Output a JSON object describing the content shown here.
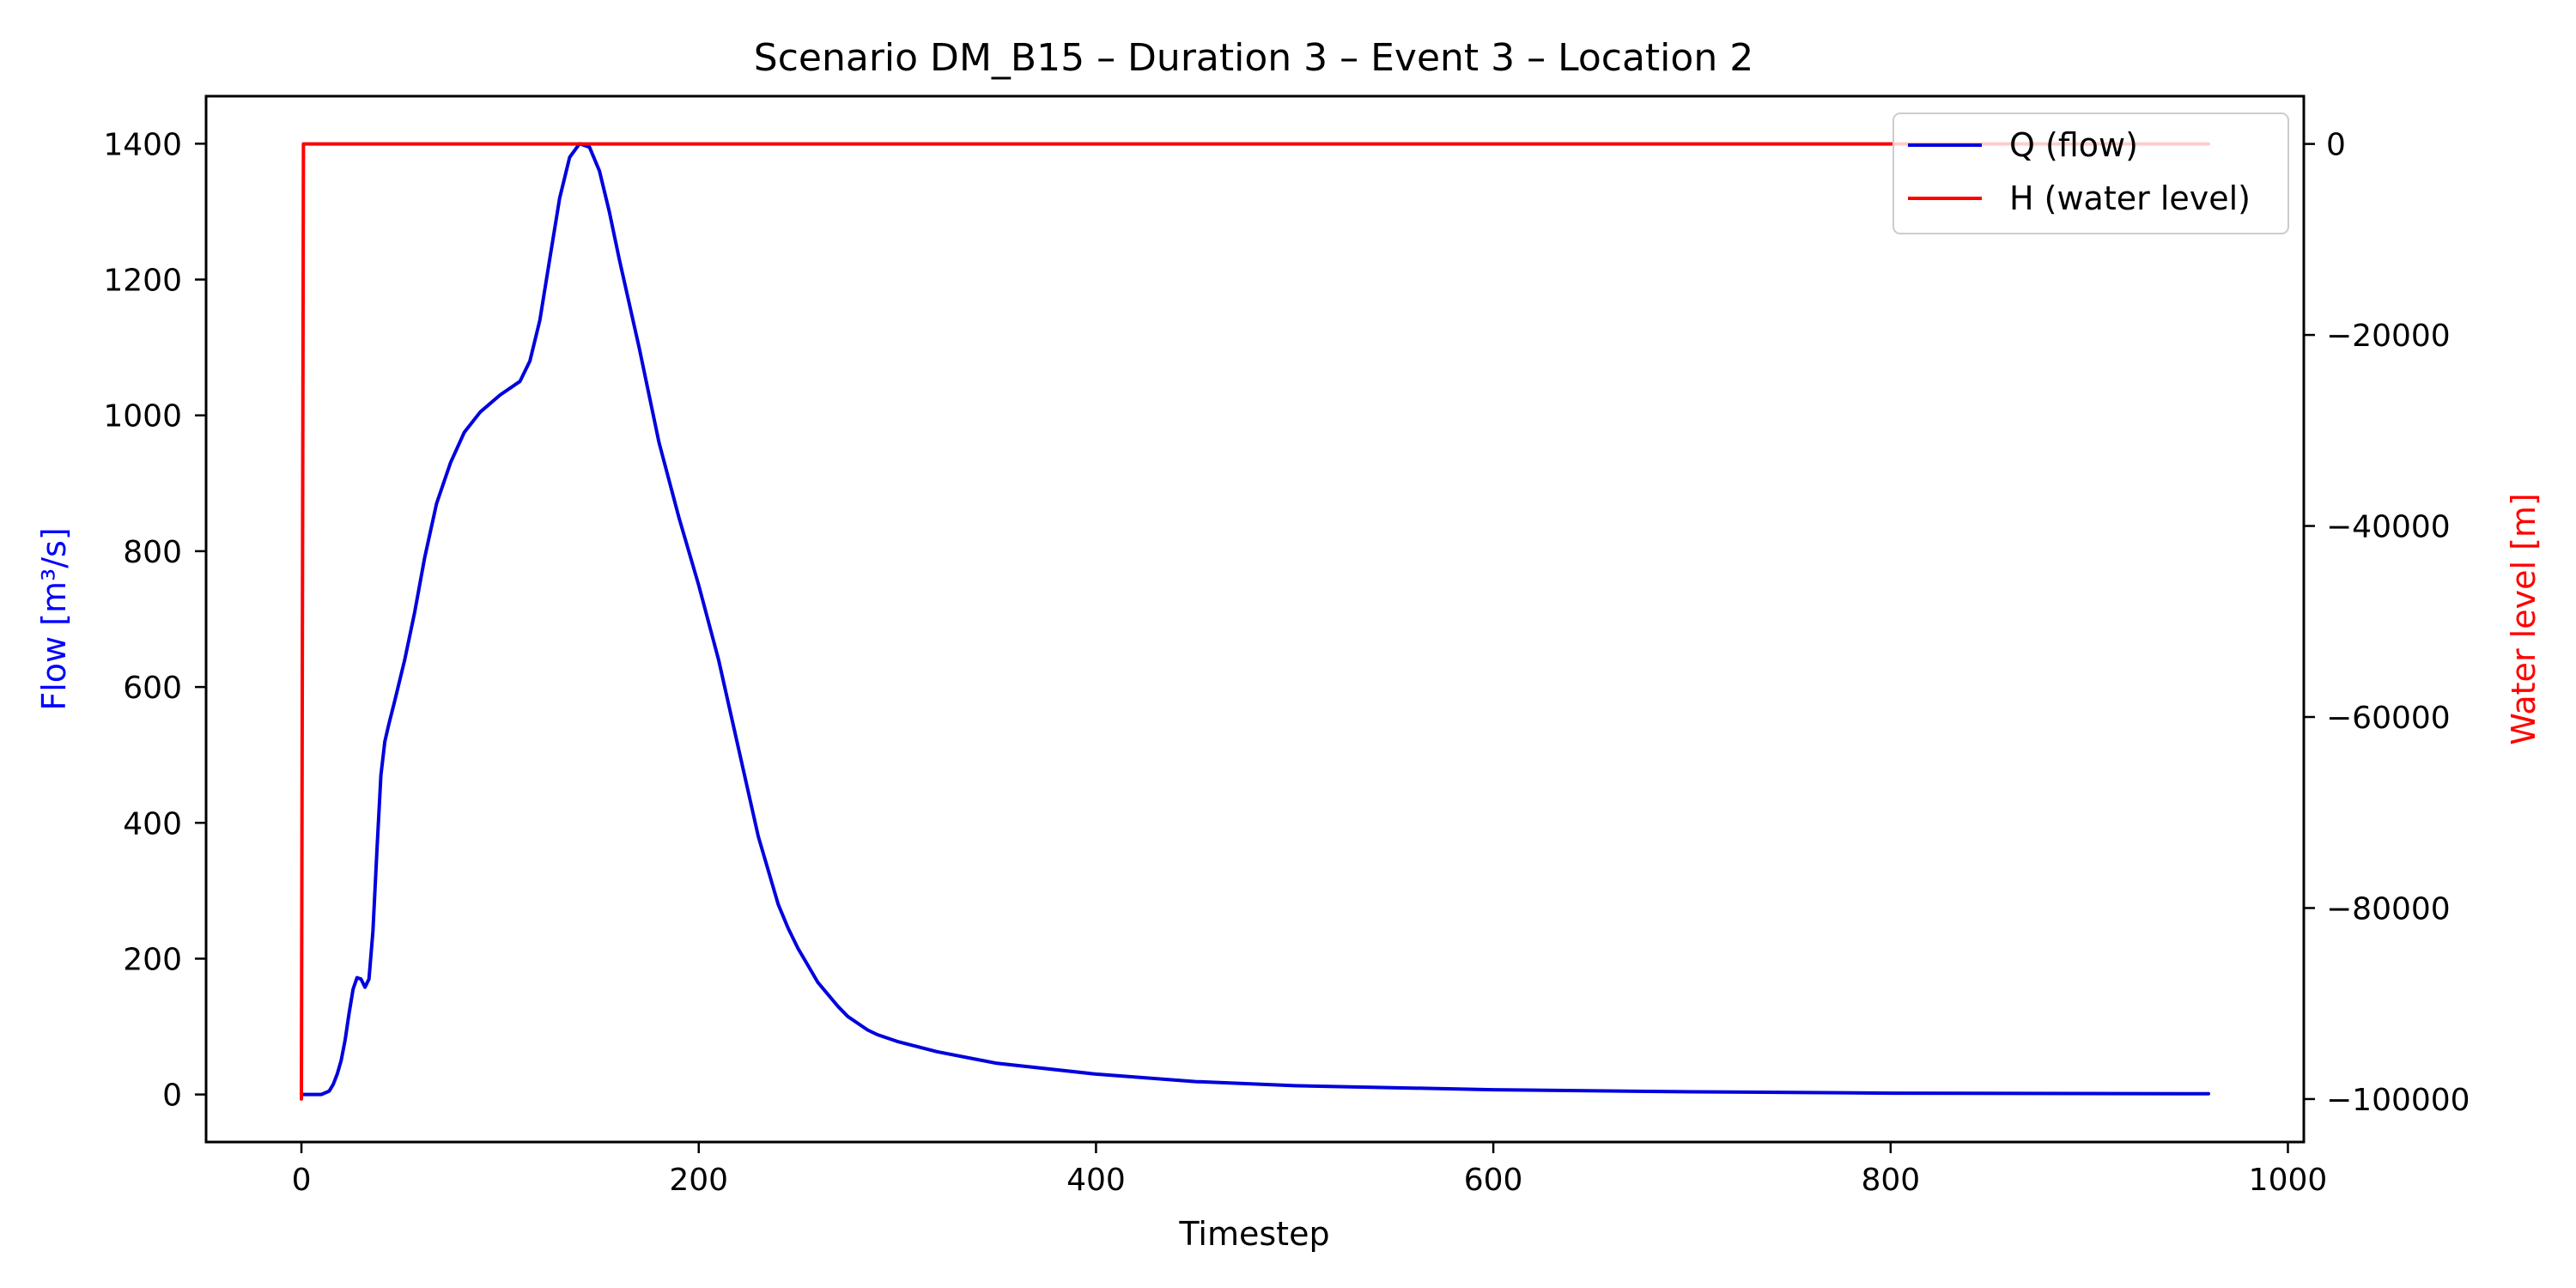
{
  "chart_data": {
    "type": "line",
    "title": "Scenario DM_B15 – Duration 3 – Event 3 – Location 2",
    "xlabel": "Timestep",
    "ylabel_left": "Flow [m³/s]",
    "ylabel_right": "Water level [m]",
    "xlim": [
      -48,
      1008
    ],
    "ylim_left": [
      -70,
      1470
    ],
    "ylim_right": [
      -104500,
      5000
    ],
    "x_ticks": [
      0,
      200,
      400,
      600,
      800,
      1000
    ],
    "y_left_ticks": [
      0,
      200,
      400,
      600,
      800,
      1000,
      1200,
      1400
    ],
    "y_right_ticks": [
      0,
      -20000,
      -40000,
      -60000,
      -80000,
      -100000
    ],
    "y_right_tick_labels": [
      "0",
      "−20000",
      "−40000",
      "−60000",
      "−80000",
      "−100000"
    ],
    "grid": false,
    "legend": {
      "placement": "top-right",
      "entries": [
        "Q (flow)",
        "H (water level)"
      ]
    },
    "colors": {
      "flow": "#0000dd",
      "level": "#ff0000",
      "left_label": "#0000ff",
      "right_label": "#ff0000"
    },
    "series": [
      {
        "name": "Q (flow)",
        "axis": "left",
        "x": [
          0,
          5,
          10,
          14,
          16,
          18,
          20,
          22,
          24,
          26,
          28,
          30,
          32,
          34,
          36,
          38,
          40,
          42,
          44,
          47,
          52,
          57,
          62,
          68,
          75,
          82,
          90,
          100,
          110,
          115,
          120,
          125,
          130,
          135,
          140,
          145,
          150,
          155,
          160,
          170,
          180,
          190,
          200,
          210,
          220,
          230,
          235,
          240,
          245,
          250,
          255,
          260,
          270,
          275,
          280,
          285,
          290,
          300,
          320,
          350,
          400,
          450,
          500,
          600,
          700,
          800,
          960
        ],
        "values": [
          0,
          0,
          0,
          5,
          15,
          30,
          50,
          80,
          120,
          155,
          172,
          170,
          158,
          170,
          240,
          360,
          470,
          520,
          545,
          580,
          640,
          710,
          790,
          870,
          930,
          975,
          1005,
          1030,
          1050,
          1080,
          1140,
          1230,
          1320,
          1380,
          1400,
          1395,
          1360,
          1300,
          1230,
          1100,
          960,
          850,
          750,
          640,
          510,
          380,
          330,
          280,
          245,
          215,
          190,
          165,
          130,
          115,
          105,
          95,
          88,
          78,
          63,
          46,
          30,
          19,
          13,
          7,
          4,
          2,
          1
        ]
      },
      {
        "name": "H (water level)",
        "axis": "right",
        "x": [
          0,
          1,
          2,
          960
        ],
        "values": [
          -100000,
          0,
          0,
          0
        ]
      }
    ]
  }
}
